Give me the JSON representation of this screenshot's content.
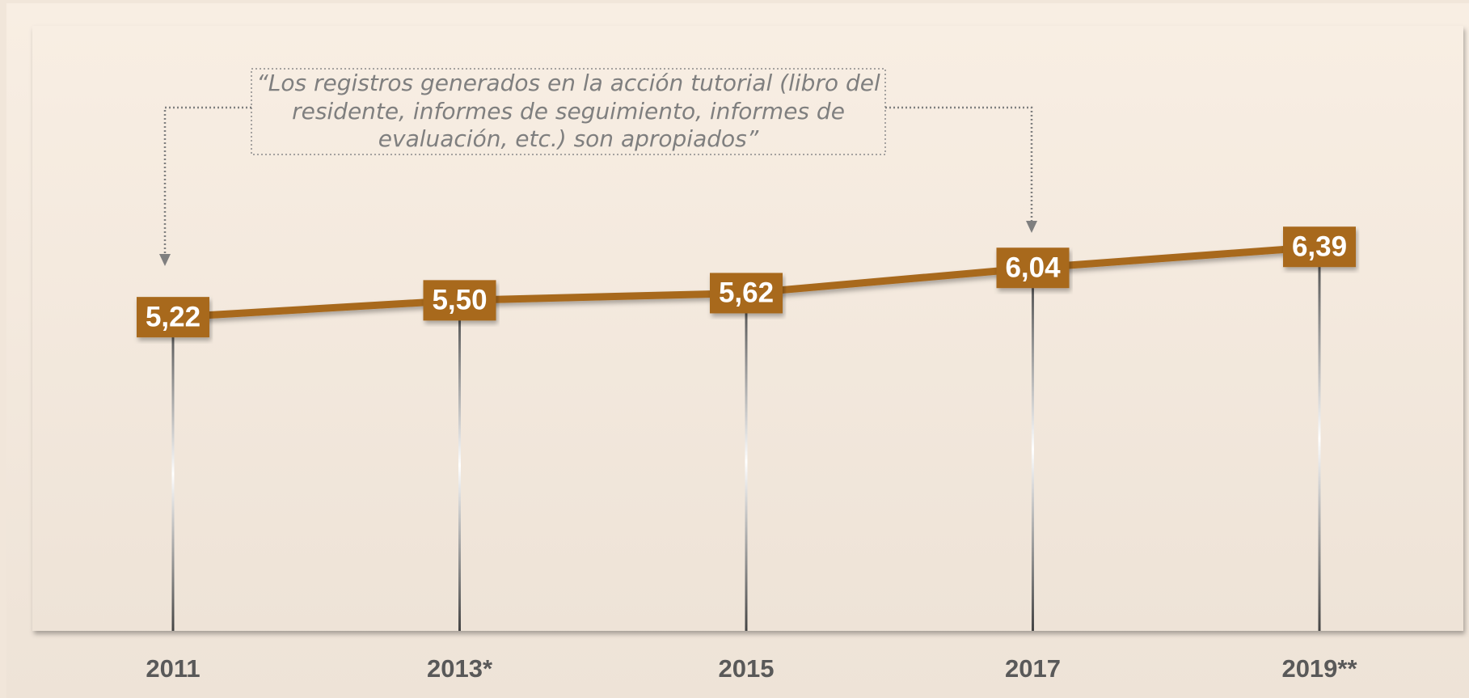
{
  "chart_data": {
    "type": "line",
    "annotation": [
      "“Los registros generados en la acción tutorial (libro del",
      "residente, informes de seguimiento, informes de",
      "evaluación, etc.) son apropiados”"
    ],
    "categories": [
      "2011",
      "2013*",
      "2015",
      "2017",
      "2019**"
    ],
    "values": [
      5.22,
      5.5,
      5.62,
      6.04,
      6.39
    ],
    "value_labels": [
      "5,22",
      "5,50",
      "5,62",
      "6,04",
      "6,39"
    ],
    "color": "#a8691f"
  }
}
